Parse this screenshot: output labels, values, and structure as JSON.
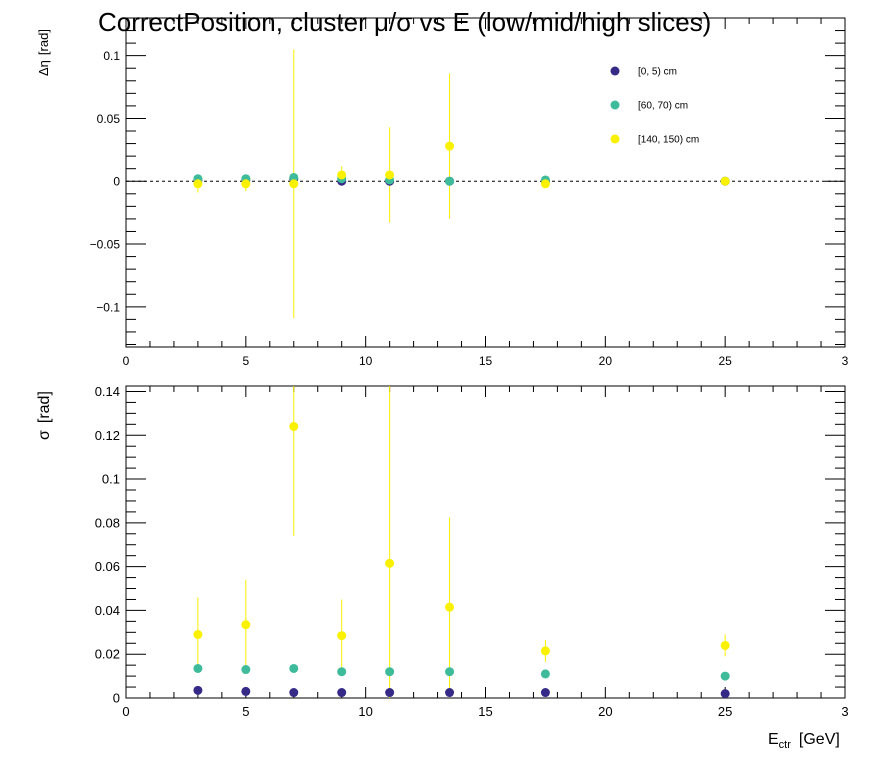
{
  "chart_data": {
    "title": "CorrectPosition, cluster   μ/σ vs E  (low/mid/high slices)",
    "type": "scatter",
    "legend_position": "top-right",
    "series_names": [
      "[0, 5) cm",
      "[60, 70) cm",
      "[140, 150) cm"
    ],
    "colors": [
      "#352A87",
      "#3DBB9A",
      "#F9F100"
    ],
    "panels": [
      {
        "ylabel_main": "Δη",
        "ylabel_unit": "[rad]",
        "xlim": [
          0,
          30
        ],
        "ylim": [
          -0.132,
          0.13
        ],
        "x_ticks": [
          "0",
          "5",
          "10",
          "15",
          "20",
          "25",
          "3"
        ],
        "y_ticks": [
          "−0.1",
          "−0.05",
          "0",
          "0.05",
          "0.1"
        ],
        "reference_line_y": 0,
        "series": [
          {
            "name": "[0, 5) cm",
            "x": [
              3,
              5,
              7,
              9,
              11,
              13.5,
              17.5,
              25
            ],
            "y": [
              0.001,
              0.001,
              0.002,
              0.0,
              0.0,
              0.0,
              0.0,
              0.0
            ],
            "err": [
              0.0005,
              0.0005,
              0.0005,
              0.0005,
              0.0005,
              0.0005,
              0.0005,
              0.0005
            ]
          },
          {
            "name": "[60, 70) cm",
            "x": [
              3,
              5,
              7,
              9,
              11,
              13.5,
              17.5,
              25
            ],
            "y": [
              0.002,
              0.002,
              0.003,
              0.002,
              0.001,
              0.0,
              0.001,
              0.0
            ],
            "err": [
              0.001,
              0.001,
              0.001,
              0.001,
              0.001,
              0.001,
              0.001,
              0.001
            ]
          },
          {
            "name": "[140, 150) cm",
            "x": [
              3,
              5,
              7,
              9,
              11,
              13.5,
              17.5,
              25
            ],
            "y": [
              -0.002,
              -0.002,
              -0.002,
              0.005,
              0.005,
              0.028,
              -0.002,
              0.0
            ],
            "err": [
              0.007,
              0.006,
              0.107,
              0.007,
              0.038,
              0.058,
              0.003,
              0.003
            ]
          }
        ]
      },
      {
        "ylabel_main": "σ",
        "ylabel_unit": "[rad]",
        "xlabel_main": "E",
        "xlabel_sub": "ctr",
        "xlabel_unit": "[GeV]",
        "xlim": [
          0,
          30
        ],
        "ylim": [
          0,
          0.1425
        ],
        "x_ticks": [
          "0",
          "5",
          "10",
          "15",
          "20",
          "25",
          "3"
        ],
        "y_ticks": [
          "0",
          "0.02",
          "0.04",
          "0.06",
          "0.08",
          "0.1",
          "0.12",
          "0.14"
        ],
        "series": [
          {
            "name": "[0, 5) cm",
            "x": [
              3,
              5,
              7,
              9,
              11,
              13.5,
              17.5,
              25
            ],
            "y": [
              0.0035,
              0.003,
              0.0025,
              0.0025,
              0.0025,
              0.0025,
              0.0025,
              0.002
            ],
            "err": [
              0.0005,
              0.0005,
              0.0005,
              0.0005,
              0.0005,
              0.0005,
              0.0005,
              0.0005
            ]
          },
          {
            "name": "[60, 70) cm",
            "x": [
              3,
              5,
              7,
              9,
              11,
              13.5,
              17.5,
              25
            ],
            "y": [
              0.0135,
              0.013,
              0.0135,
              0.012,
              0.012,
              0.012,
              0.011,
              0.01
            ],
            "err": [
              0.0008,
              0.0008,
              0.0008,
              0.0008,
              0.0008,
              0.0008,
              0.0008,
              0.0008
            ]
          },
          {
            "name": "[140, 150) cm",
            "x": [
              3,
              5,
              7,
              9,
              11,
              13.5,
              17.5,
              25
            ],
            "y": [
              0.029,
              0.0335,
              0.124,
              0.0285,
              0.0615,
              0.0415,
              0.0215,
              0.024
            ],
            "err": [
              0.017,
              0.0205,
              0.05,
              0.0165,
              0.09,
              0.041,
              0.005,
              0.005
            ]
          }
        ]
      }
    ]
  }
}
